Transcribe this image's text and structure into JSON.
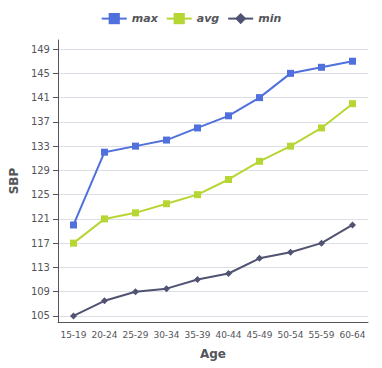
{
  "chart_data": {
    "type": "line",
    "categories": [
      "15-19",
      "20-24",
      "25-29",
      "30-34",
      "35-39",
      "40-44",
      "45-49",
      "50-54",
      "55-59",
      "60-64"
    ],
    "series": [
      {
        "name": "max",
        "marker": "square",
        "values": [
          120,
          132,
          133,
          134,
          136,
          138,
          141,
          145,
          146,
          147
        ]
      },
      {
        "name": "avg",
        "marker": "square",
        "values": [
          117,
          121,
          122,
          123.5,
          125,
          127.5,
          130.5,
          133,
          136,
          140
        ]
      },
      {
        "name": "min",
        "marker": "diamond",
        "values": [
          105,
          107.5,
          109,
          109.5,
          111,
          112,
          114.5,
          115.5,
          117,
          120
        ]
      }
    ],
    "xlabel": "Age",
    "ylabel": "SBP",
    "ylim": [
      104,
      150.5
    ],
    "yticks": [
      105,
      109,
      113,
      117,
      121,
      125,
      129,
      133,
      137,
      141,
      145,
      149
    ],
    "grid": true,
    "legend": "top"
  }
}
